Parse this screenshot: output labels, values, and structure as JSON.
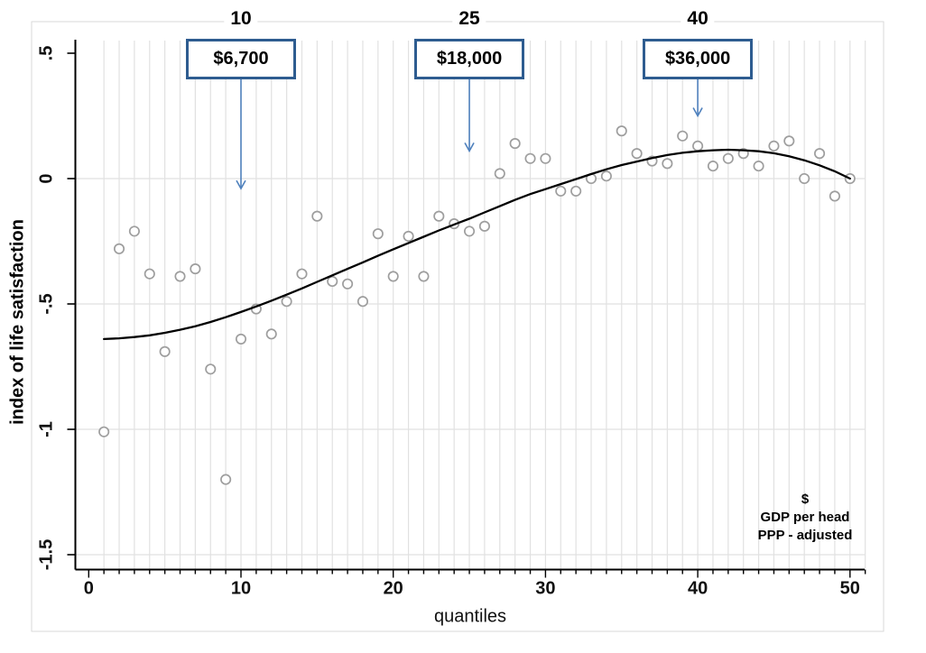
{
  "chart_data": {
    "type": "scatter",
    "title": "",
    "xlabel": "quantiles",
    "ylabel": "index of life satisfaction",
    "xlim": [
      0,
      51
    ],
    "ylim": [
      -1.65,
      0.55
    ],
    "grid": "vertical line per quantile; horizontal lines at labeled y ticks",
    "legend": "none",
    "x_ticks": [
      0,
      10,
      20,
      30,
      40,
      50
    ],
    "y_ticks": [
      {
        "label": ".5",
        "value": 0.5
      },
      {
        "label": "0",
        "value": 0
      },
      {
        "label": "-.5",
        "value": -0.5
      },
      {
        "label": "-1",
        "value": -1
      },
      {
        "label": "-1.5",
        "value": -1.5
      }
    ],
    "top_axis_labels": [
      {
        "text": "10",
        "x": 10
      },
      {
        "text": "25",
        "x": 25
      },
      {
        "text": "40",
        "x": 40
      }
    ],
    "annotations": [
      {
        "text": "$6,700",
        "x": 10,
        "arrow_tip_y": -0.04
      },
      {
        "text": "$18,000",
        "x": 25,
        "arrow_tip_y": 0.11
      },
      {
        "text": "$36,000",
        "x": 40,
        "arrow_tip_y": 0.25
      }
    ],
    "note": [
      "$",
      "GDP per head",
      "PPP - adjusted"
    ],
    "points": [
      [
        1,
        -1.01
      ],
      [
        2,
        -0.28
      ],
      [
        3,
        -0.21
      ],
      [
        4,
        -0.38
      ],
      [
        5,
        -0.69
      ],
      [
        6,
        -0.39
      ],
      [
        7,
        -0.36
      ],
      [
        8,
        -0.76
      ],
      [
        9,
        -1.2
      ],
      [
        10,
        -0.64
      ],
      [
        11,
        -0.52
      ],
      [
        12,
        -0.62
      ],
      [
        13,
        -0.49
      ],
      [
        14,
        -0.38
      ],
      [
        15,
        -0.15
      ],
      [
        16,
        -0.41
      ],
      [
        17,
        -0.42
      ],
      [
        18,
        -0.49
      ],
      [
        19,
        -0.22
      ],
      [
        20,
        -0.39
      ],
      [
        21,
        -0.23
      ],
      [
        22,
        -0.39
      ],
      [
        23,
        -0.15
      ],
      [
        24,
        -0.18
      ],
      [
        25,
        -0.21
      ],
      [
        26,
        -0.19
      ],
      [
        27,
        0.02
      ],
      [
        28,
        0.14
      ],
      [
        29,
        0.08
      ],
      [
        30,
        0.08
      ],
      [
        31,
        -0.05
      ],
      [
        32,
        -0.05
      ],
      [
        33,
        0.0
      ],
      [
        34,
        0.01
      ],
      [
        35,
        0.19
      ],
      [
        36,
        0.1
      ],
      [
        37,
        0.07
      ],
      [
        38,
        0.06
      ],
      [
        39,
        0.17
      ],
      [
        40,
        0.13
      ],
      [
        41,
        0.05
      ],
      [
        42,
        0.08
      ],
      [
        43,
        0.1
      ],
      [
        44,
        0.05
      ],
      [
        45,
        0.13
      ],
      [
        46,
        0.15
      ],
      [
        47,
        0.0
      ],
      [
        48,
        0.1
      ],
      [
        49,
        -0.07
      ],
      [
        50,
        0.0
      ]
    ],
    "trend": [
      [
        1,
        -0.64
      ],
      [
        2,
        -0.637
      ],
      [
        3,
        -0.632
      ],
      [
        4,
        -0.625
      ],
      [
        5,
        -0.615
      ],
      [
        6,
        -0.603
      ],
      [
        7,
        -0.589
      ],
      [
        8,
        -0.572
      ],
      [
        9,
        -0.553
      ],
      [
        10,
        -0.532
      ],
      [
        11,
        -0.51
      ],
      [
        12,
        -0.487
      ],
      [
        13,
        -0.463
      ],
      [
        14,
        -0.438
      ],
      [
        15,
        -0.412
      ],
      [
        16,
        -0.386
      ],
      [
        17,
        -0.36
      ],
      [
        18,
        -0.334
      ],
      [
        19,
        -0.308
      ],
      [
        20,
        -0.282
      ],
      [
        21,
        -0.257
      ],
      [
        22,
        -0.232
      ],
      [
        23,
        -0.207
      ],
      [
        24,
        -0.183
      ],
      [
        25,
        -0.16
      ],
      [
        26,
        -0.135
      ],
      [
        27,
        -0.11
      ],
      [
        28,
        -0.085
      ],
      [
        29,
        -0.062
      ],
      [
        30,
        -0.042
      ],
      [
        31,
        -0.022
      ],
      [
        32,
        -0.002
      ],
      [
        33,
        0.018
      ],
      [
        34,
        0.037
      ],
      [
        35,
        0.054
      ],
      [
        36,
        0.068
      ],
      [
        37,
        0.082
      ],
      [
        38,
        0.094
      ],
      [
        39,
        0.103
      ],
      [
        40,
        0.109
      ],
      [
        41,
        0.113
      ],
      [
        42,
        0.115
      ],
      [
        43,
        0.113
      ],
      [
        44,
        0.109
      ],
      [
        45,
        0.101
      ],
      [
        46,
        0.089
      ],
      [
        47,
        0.073
      ],
      [
        48,
        0.053
      ],
      [
        49,
        0.029
      ],
      [
        50,
        0.0
      ]
    ],
    "colors": {
      "marker": "#9e9e9e",
      "trend": "#000000",
      "grid": "#e1e1e1",
      "frame": "#d9d9d9",
      "axis": "#000000",
      "callout_border": "#2e5c90",
      "arrow": "#4f81bd"
    }
  }
}
